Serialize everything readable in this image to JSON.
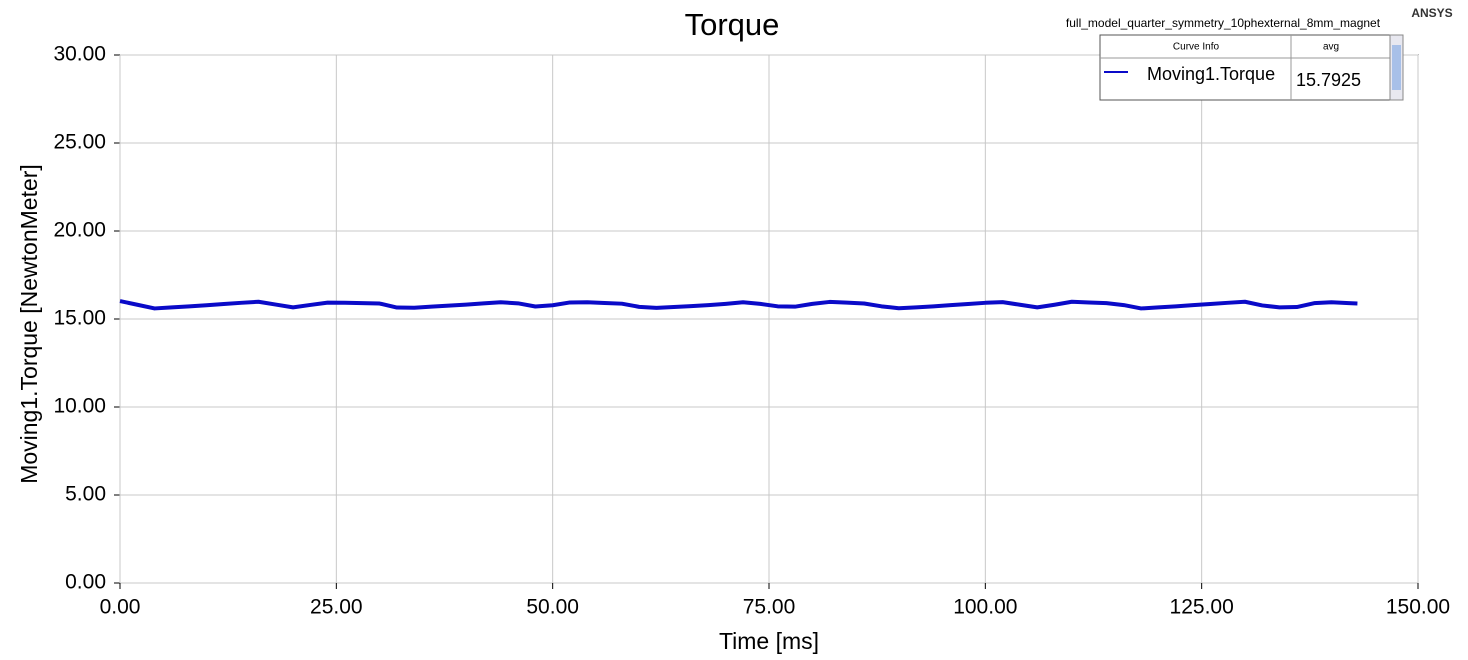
{
  "chart_data": {
    "type": "line",
    "title": "Torque",
    "subtitle": "full_model_quarter_symmetry_10phexternal_8mm_magnet",
    "brand": "ANSYS",
    "legend_headers": [
      "Curve Info",
      "avg"
    ],
    "x": [
      0,
      2,
      4,
      6,
      8,
      10,
      12,
      14,
      16,
      18,
      20,
      22,
      24,
      26,
      28,
      30,
      32,
      34,
      36,
      38,
      40,
      42,
      44,
      46,
      48,
      50,
      52,
      54,
      56,
      58,
      60,
      62,
      64,
      66,
      68,
      70,
      72,
      74,
      76,
      78,
      80,
      82,
      84,
      86,
      88,
      90,
      92,
      94,
      96,
      98,
      100,
      102,
      104,
      106,
      108,
      110,
      112,
      114,
      116,
      118,
      120,
      122,
      124,
      126,
      128,
      130,
      132,
      134,
      136,
      138,
      140,
      142,
      143
    ],
    "series": [
      {
        "name": "Moving1.Torque",
        "color": "#0a0ac8",
        "avg": 15.7925,
        "values": [
          16.02,
          15.81,
          15.6,
          15.66,
          15.72,
          15.78,
          15.85,
          15.92,
          15.98,
          15.82,
          15.66,
          15.8,
          15.93,
          15.92,
          15.9,
          15.88,
          15.65,
          15.64,
          15.7,
          15.76,
          15.82,
          15.89,
          15.95,
          15.89,
          15.71,
          15.78,
          15.94,
          15.95,
          15.91,
          15.87,
          15.69,
          15.63,
          15.68,
          15.73,
          15.79,
          15.86,
          15.95,
          15.86,
          15.72,
          15.7,
          15.86,
          15.97,
          15.93,
          15.88,
          15.72,
          15.61,
          15.66,
          15.72,
          15.79,
          15.85,
          15.92,
          15.96,
          15.81,
          15.66,
          15.81,
          15.98,
          15.94,
          15.9,
          15.79,
          15.6,
          15.66,
          15.72,
          15.79,
          15.85,
          15.92,
          15.98,
          15.77,
          15.66,
          15.68,
          15.9,
          15.95,
          15.9,
          15.88
        ]
      }
    ],
    "xlabel": "Time [ms]",
    "ylabel": "Moving1.Torque [NewtonMeter]",
    "xlim": [
      0,
      150
    ],
    "ylim": [
      0,
      30
    ],
    "xticks": [
      {
        "value": 0,
        "label": "0.00"
      },
      {
        "value": 25,
        "label": "25.00"
      },
      {
        "value": 50,
        "label": "50.00"
      },
      {
        "value": 75,
        "label": "75.00"
      },
      {
        "value": 100,
        "label": "100.00"
      },
      {
        "value": 125,
        "label": "125.00"
      },
      {
        "value": 150,
        "label": "150.00"
      }
    ],
    "yticks": [
      {
        "value": 0,
        "label": "0.00"
      },
      {
        "value": 5,
        "label": "5.00"
      },
      {
        "value": 10,
        "label": "10.00"
      },
      {
        "value": 15,
        "label": "15.00"
      },
      {
        "value": 20,
        "label": "20.00"
      },
      {
        "value": 25,
        "label": "25.00"
      },
      {
        "value": 30,
        "label": "30.00"
      }
    ],
    "grid": true
  }
}
